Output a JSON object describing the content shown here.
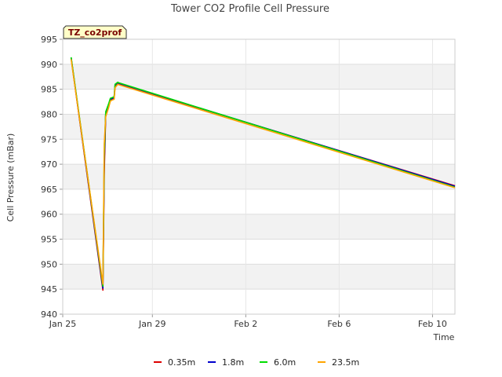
{
  "chart_data": {
    "type": "line",
    "title": "Tower CO2 Profile Cell Pressure",
    "badge": "TZ_co2prof",
    "xlabel": "Time",
    "ylabel": "Cell Pressure (mBar)",
    "xlim": [
      0,
      21
    ],
    "ylim": [
      940,
      995
    ],
    "x_ticks": [
      {
        "label": "Jan 25",
        "x": 0
      },
      {
        "label": "Jan 29",
        "x": 4.8
      },
      {
        "label": "Feb 2",
        "x": 9.8
      },
      {
        "label": "Feb 6",
        "x": 14.8
      },
      {
        "label": "Feb 10",
        "x": 19.8
      }
    ],
    "y_ticks": [
      940,
      945,
      950,
      955,
      960,
      965,
      970,
      975,
      980,
      985,
      990,
      995
    ],
    "series": [
      {
        "name": "0.35m",
        "color": "#dd0000",
        "x": [
          0.45,
          2.15,
          2.22,
          2.3,
          2.45,
          2.55,
          2.62,
          2.75,
          2.8,
          2.95,
          3.0,
          21.0
        ],
        "y": [
          991.2,
          944.8,
          968.0,
          980.0,
          981.5,
          982.8,
          983.0,
          983.2,
          985.5,
          986.2,
          986.1,
          965.7
        ]
      },
      {
        "name": "1.8m",
        "color": "#0000cc",
        "x": [
          0.45,
          2.15,
          2.22,
          2.3,
          2.45,
          2.55,
          2.62,
          2.75,
          2.8,
          2.95,
          3.0,
          21.0
        ],
        "y": [
          991.3,
          945.2,
          970.0,
          980.2,
          981.8,
          983.0,
          983.1,
          983.3,
          985.8,
          986.3,
          986.2,
          965.6
        ]
      },
      {
        "name": "6.0m",
        "color": "#00dd00",
        "x": [
          0.45,
          2.15,
          2.22,
          2.3,
          2.45,
          2.55,
          2.62,
          2.75,
          2.8,
          2.95,
          3.0,
          21.0
        ],
        "y": [
          991.4,
          945.6,
          972.0,
          980.5,
          982.0,
          983.2,
          983.3,
          983.5,
          986.0,
          986.4,
          986.3,
          965.4
        ]
      },
      {
        "name": "23.5m",
        "color": "#ffa500",
        "x": [
          0.45,
          2.15,
          2.22,
          2.3,
          2.45,
          2.55,
          2.62,
          2.75,
          2.8,
          2.95,
          3.0,
          21.0
        ],
        "y": [
          991.0,
          946.0,
          974.0,
          979.5,
          981.2,
          982.6,
          982.8,
          983.0,
          985.3,
          986.0,
          985.9,
          965.3
        ]
      }
    ],
    "legend_position": "bottom"
  }
}
